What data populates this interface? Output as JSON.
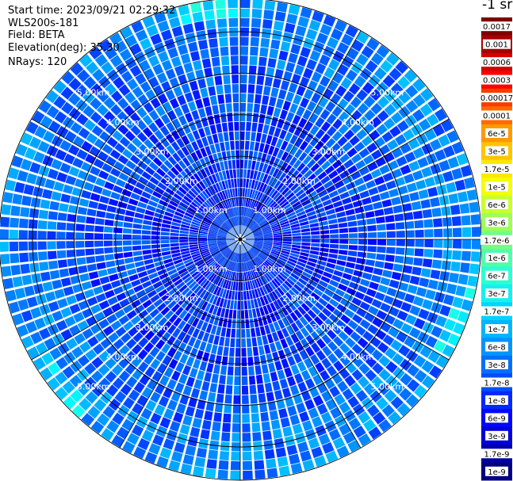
{
  "header": {
    "start_time": "Start time: 2023/09/21 02:29:32",
    "instrument": "WLS200s-181",
    "field": "Field: BETA",
    "elevation": "Elevation(deg): 35.30",
    "nrays": "NRays: 120"
  },
  "colorbar": {
    "unit_label": "-1 sr",
    "labels": [
      "0.0017",
      "0.001",
      "0.0006",
      "0.0003",
      "0.00017",
      "0.0001",
      "6e-5",
      "3e-5",
      "1.7e-5",
      "1e-5",
      "6e-6",
      "3e-6",
      "1.7e-6",
      "1e-6",
      "6e-7",
      "3e-7",
      "1.7e-7",
      "1e-7",
      "6e-8",
      "3e-8",
      "1.7e-8",
      "1e-8",
      "6e-9",
      "3e-9",
      "1.7e-9",
      "1e-9"
    ],
    "colors": [
      "#7f0000",
      "#a80000",
      "#d40000",
      "#ff0000",
      "#ff3a00",
      "#ff6a00",
      "#ff9900",
      "#ffc400",
      "#ffe800",
      "#f2ff05",
      "#c8ff2f",
      "#9dff5a",
      "#73ff84",
      "#4fffaa",
      "#2dffd0",
      "#18f0f0",
      "#00d4ff",
      "#00b4ff",
      "#0094ff",
      "#0070ff",
      "#004cff",
      "#0028ff",
      "#0008ff",
      "#0000d8",
      "#0000a8",
      "#000080"
    ]
  },
  "chart_data": {
    "type": "heatmap",
    "plot": "polar PPI scan",
    "nrays": 120,
    "max_range_km": 5.8,
    "range_rings_km": [
      1.0,
      2.0,
      3.0,
      4.0,
      5.0
    ],
    "ring_labels": [
      "1.00km",
      "2.00km",
      "3.00km",
      "4.00km",
      "5.00km"
    ],
    "spoke_angles_deg": [
      0,
      30,
      60,
      90,
      120,
      150,
      180,
      210,
      240,
      270,
      300,
      330
    ],
    "value_scale": "log",
    "value_range": [
      1e-09,
      0.0017
    ],
    "typical_values": [
      "1.7e-8",
      "1e-7"
    ],
    "near_center_values": [
      "1e-8",
      "1.7e-8"
    ],
    "max_value_seen": "3e-7",
    "color_map": "jet"
  }
}
